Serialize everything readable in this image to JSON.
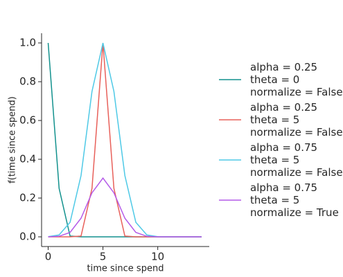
{
  "chart_data": {
    "type": "line",
    "xlabel": "time since spend",
    "ylabel": "f(time since spend)",
    "x": [
      0,
      1,
      2,
      3,
      4,
      5,
      6,
      7,
      8,
      9,
      10,
      11,
      12,
      13,
      14
    ],
    "series": [
      {
        "name": "alpha = 0.25\ntheta = 0\nnormalize = False",
        "color": "#12918d",
        "values": [
          1.0,
          0.25,
          0.004,
          0,
          0,
          0,
          0,
          0,
          0,
          0,
          0,
          0,
          0,
          0,
          0
        ]
      },
      {
        "name": "alpha = 0.25\ntheta = 5\nnormalize = False",
        "color": "#e8605a",
        "values": [
          0,
          0,
          0,
          0.004,
          0.25,
          1.0,
          0.25,
          0.004,
          0,
          0,
          0,
          0,
          0,
          0,
          0
        ]
      },
      {
        "name": "alpha = 0.75\ntheta = 5\nnormalize = False",
        "color": "#4ec9e6",
        "values": [
          0.0008,
          0.01,
          0.075,
          0.316,
          0.75,
          1.0,
          0.75,
          0.316,
          0.075,
          0.01,
          0.0008,
          0,
          0,
          0,
          0
        ]
      },
      {
        "name": "alpha = 0.75\ntheta = 5\nnormalize = True",
        "color": "#b45ae8",
        "values": [
          0.0002,
          0.003,
          0.023,
          0.096,
          0.227,
          0.303,
          0.227,
          0.096,
          0.023,
          0.003,
          0.0002,
          0,
          0,
          0,
          0
        ]
      }
    ],
    "xlim": [
      -0.6,
      14.7
    ],
    "ylim": [
      -0.05,
      1.05
    ],
    "xticks": [
      0,
      5,
      10
    ],
    "yticks": [
      {
        "value": 0,
        "label": "0.0"
      },
      {
        "value": 0.2,
        "label": "0.2"
      },
      {
        "value": 0.4,
        "label": "0.4"
      },
      {
        "value": 0.6,
        "label": "0.6"
      },
      {
        "value": 0.8,
        "label": "0.8"
      },
      {
        "value": 1.0,
        "label": "1.0"
      }
    ],
    "legend": "right"
  }
}
